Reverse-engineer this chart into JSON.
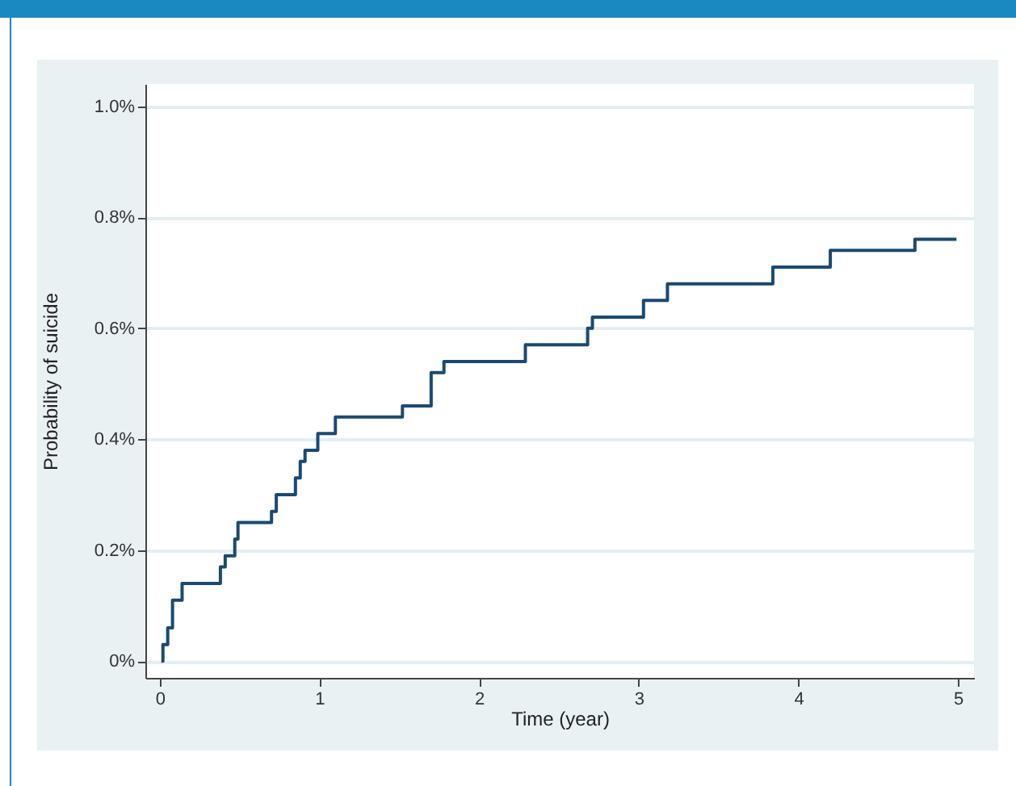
{
  "chart_data": {
    "type": "step",
    "xlabel": "Time (year)",
    "ylabel": "Probability of suicide",
    "x": [
      0.01,
      0.02,
      0.05,
      0.08,
      0.14,
      0.38,
      0.41,
      0.47,
      0.49,
      0.7,
      0.73,
      0.85,
      0.88,
      0.91,
      0.99,
      1.1,
      1.52,
      1.7,
      1.78,
      2.29,
      2.68,
      2.71,
      3.03,
      3.18,
      3.84,
      4.2,
      4.73,
      4.99
    ],
    "series": [
      {
        "color": "#1a4a72",
        "values": [
          0,
          0.03,
          0.06,
          0.11,
          0.14,
          0.17,
          0.19,
          0.22,
          0.25,
          0.27,
          0.3,
          0.33,
          0.36,
          0.38,
          0.41,
          0.44,
          0.46,
          0.52,
          0.54,
          0.57,
          0.6,
          0.62,
          0.65,
          0.68,
          0.71,
          0.74,
          0.76,
          0.76
        ]
      }
    ],
    "xlim": [
      -0.09,
      5.1
    ],
    "xticks": [
      0,
      1,
      2,
      3,
      4,
      5
    ],
    "ylim": [
      -0.03,
      1.04
    ],
    "yticks": [
      {
        "value": 0,
        "label": "0%"
      },
      {
        "value": 0.2,
        "label": "0.2%"
      },
      {
        "value": 0.4,
        "label": "0.4%"
      },
      {
        "value": 0.6,
        "label": "0.6%"
      },
      {
        "value": 0.8,
        "label": "0.8%"
      },
      {
        "value": 1,
        "label": "1.0%"
      }
    ],
    "grid": "y"
  }
}
